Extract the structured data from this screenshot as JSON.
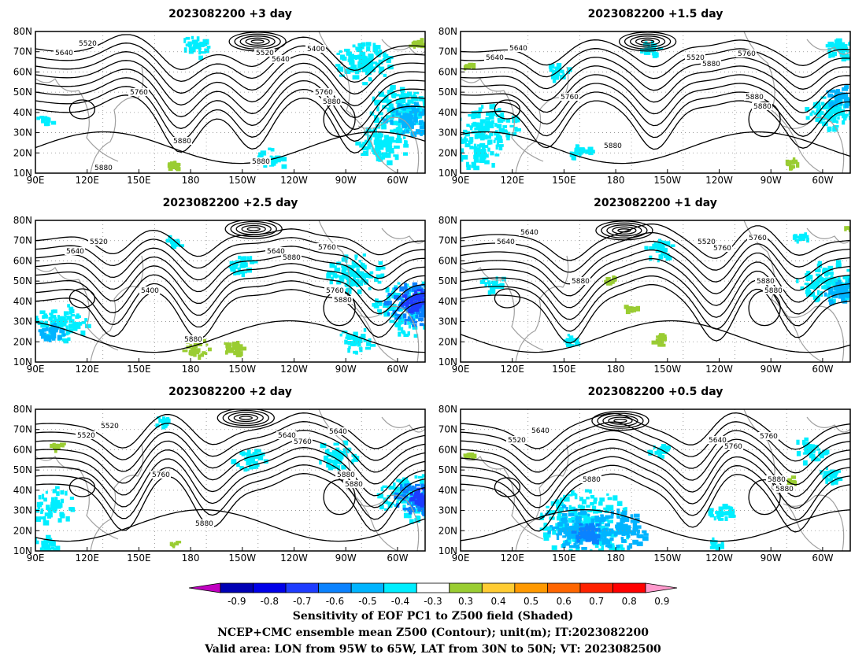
{
  "figure": {
    "panels": [
      {
        "title": "2023082200  +3 day",
        "contour_labels": [
          "5520",
          "5640",
          "5520",
          "5400",
          "5640",
          "5760",
          "5760",
          "5880",
          "5880",
          "5880",
          "5880"
        ]
      },
      {
        "title": "2023082200  +1.5 day",
        "contour_labels": [
          "5640",
          "5640",
          "5520",
          "5760",
          "5880",
          "5760",
          "5880",
          "5880",
          "5880"
        ]
      },
      {
        "title": "2023082200  +2.5 day",
        "contour_labels": [
          "5520",
          "5640",
          "5640",
          "5760",
          "5880",
          "5400",
          "5760",
          "5880",
          "5880"
        ]
      },
      {
        "title": "2023082200  +1 day",
        "contour_labels": [
          "5640",
          "5640",
          "5520",
          "5760",
          "5760",
          "5880",
          "5880",
          "5880"
        ]
      },
      {
        "title": "2023082200  +2 day",
        "contour_labels": [
          "5520",
          "5520",
          "5640",
          "5640",
          "5760",
          "5760",
          "5880",
          "5880",
          "5880"
        ]
      },
      {
        "title": "2023082200  +0.5 day",
        "contour_labels": [
          "5640",
          "5520",
          "5640",
          "5760",
          "5760",
          "5880",
          "5880",
          "5880"
        ]
      }
    ],
    "x_ticks": [
      "90E",
      "120E",
      "150E",
      "180",
      "150W",
      "120W",
      "90W",
      "60W"
    ],
    "y_ticks": [
      "80N",
      "70N",
      "60N",
      "50N",
      "40N",
      "30N",
      "20N",
      "10N"
    ],
    "colorbar": {
      "ticks": [
        "-0.9",
        "-0.8",
        "-0.7",
        "-0.6",
        "-0.5",
        "-0.4",
        "-0.3",
        "0.3",
        "0.4",
        "0.5",
        "0.6",
        "0.7",
        "0.8",
        "0.9"
      ],
      "colors": [
        "#c000c0",
        "#0000b4",
        "#0000e8",
        "#1e3cff",
        "#0a82ff",
        "#00b4ff",
        "#00eeff",
        "#ffffff",
        "#9acd32",
        "#ffcc33",
        "#ff9900",
        "#ff6600",
        "#ff2200",
        "#ff0000",
        "#ff99cc"
      ]
    },
    "captions": [
      "Sensitivity of EOF PC1 to Z500 field (Shaded)",
      "NCEP+CMC ensemble mean Z500 (Contour); unit(m); IT:2023082200",
      "Valid area: LON from 95W to 65W, LAT from 30N to 50N; VT: 2023082500"
    ]
  }
}
